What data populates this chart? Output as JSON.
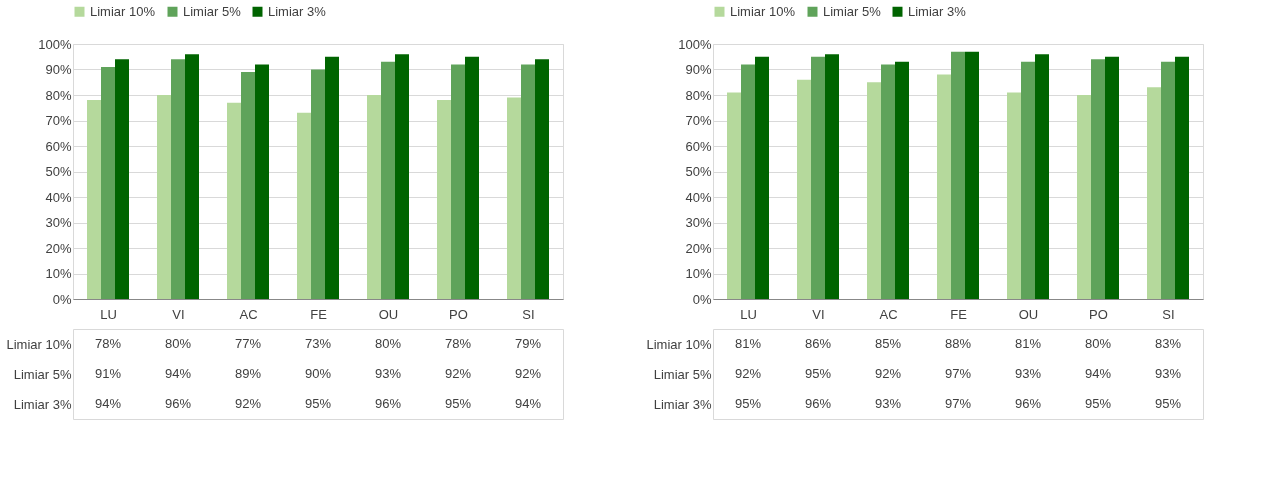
{
  "chart_data": [
    {
      "type": "bar",
      "categories": [
        "LU",
        "VI",
        "AC",
        "FE",
        "OU",
        "PO",
        "SI"
      ],
      "ylim": [
        0,
        100
      ],
      "yticks": [
        {
          "value": 0,
          "label": "0%"
        },
        {
          "value": 10,
          "label": "10%"
        },
        {
          "value": 20,
          "label": "20%"
        },
        {
          "value": 30,
          "label": "30%"
        },
        {
          "value": 40,
          "label": "40%"
        },
        {
          "value": 50,
          "label": "50%"
        },
        {
          "value": 60,
          "label": "60%"
        },
        {
          "value": 70,
          "label": "70%"
        },
        {
          "value": 80,
          "label": "80%"
        },
        {
          "value": 90,
          "label": "90%"
        },
        {
          "value": 100,
          "label": "100%"
        }
      ],
      "grid": "y",
      "legend": "top",
      "series": [
        {
          "name": "Limiar 10%",
          "color": "#b5d99c",
          "values": [
            78,
            80,
            77,
            73,
            80,
            78,
            79
          ],
          "value_labels": [
            "78%",
            "80%",
            "77%",
            "73%",
            "80%",
            "78%",
            "79%"
          ]
        },
        {
          "name": "Limiar 5%",
          "color": "#5fa35a",
          "values": [
            91,
            94,
            89,
            90,
            93,
            92,
            92
          ],
          "value_labels": [
            "91%",
            "94%",
            "89%",
            "90%",
            "93%",
            "92%",
            "92%"
          ]
        },
        {
          "name": "Limiar 3%",
          "color": "#006400",
          "values": [
            94,
            96,
            92,
            95,
            96,
            95,
            94
          ],
          "value_labels": [
            "94%",
            "96%",
            "92%",
            "95%",
            "96%",
            "95%",
            "94%"
          ]
        }
      ]
    },
    {
      "type": "bar",
      "categories": [
        "LU",
        "VI",
        "AC",
        "FE",
        "OU",
        "PO",
        "SI"
      ],
      "ylim": [
        0,
        100
      ],
      "yticks": [
        {
          "value": 0,
          "label": "0%"
        },
        {
          "value": 10,
          "label": "10%"
        },
        {
          "value": 20,
          "label": "20%"
        },
        {
          "value": 30,
          "label": "30%"
        },
        {
          "value": 40,
          "label": "40%"
        },
        {
          "value": 50,
          "label": "50%"
        },
        {
          "value": 60,
          "label": "60%"
        },
        {
          "value": 70,
          "label": "70%"
        },
        {
          "value": 80,
          "label": "80%"
        },
        {
          "value": 90,
          "label": "90%"
        },
        {
          "value": 100,
          "label": "100%"
        }
      ],
      "grid": "y",
      "legend": "top",
      "series": [
        {
          "name": "Limiar 10%",
          "color": "#b5d99c",
          "values": [
            81,
            86,
            85,
            88,
            81,
            80,
            83
          ],
          "value_labels": [
            "81%",
            "86%",
            "85%",
            "88%",
            "81%",
            "80%",
            "83%"
          ]
        },
        {
          "name": "Limiar 5%",
          "color": "#5fa35a",
          "values": [
            92,
            95,
            92,
            97,
            93,
            94,
            93
          ],
          "value_labels": [
            "92%",
            "95%",
            "92%",
            "97%",
            "93%",
            "94%",
            "93%"
          ]
        },
        {
          "name": "Limiar 3%",
          "color": "#006400",
          "values": [
            95,
            96,
            93,
            97,
            96,
            95,
            95
          ],
          "value_labels": [
            "95%",
            "96%",
            "93%",
            "97%",
            "96%",
            "95%",
            "95%"
          ]
        }
      ]
    }
  ]
}
